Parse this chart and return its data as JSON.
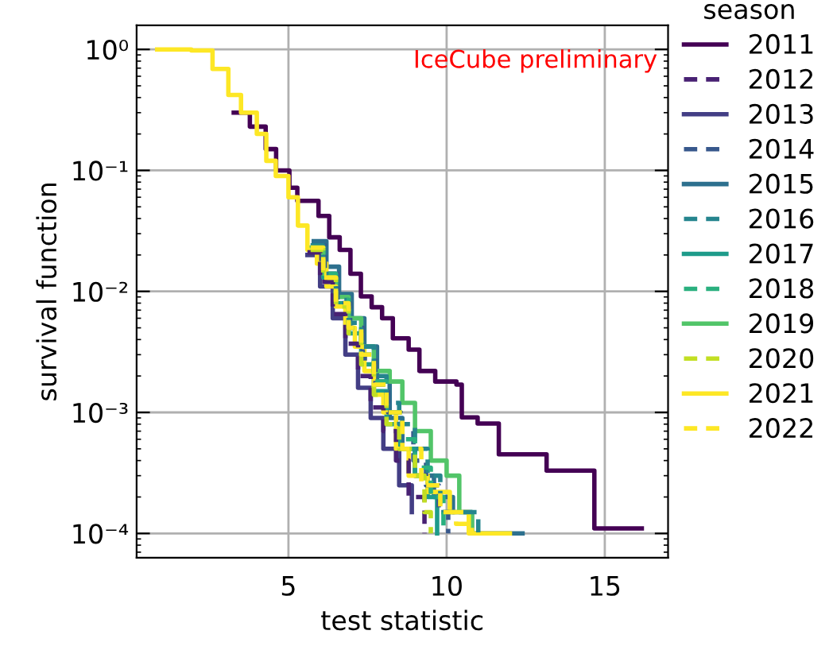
{
  "chart_data": {
    "type": "step",
    "xlabel": "test statistic",
    "ylabel": "survival function",
    "legend_title": "season",
    "annotations": [
      "IceCube preliminary"
    ],
    "log": "y",
    "grid": true,
    "legend": "right",
    "xlim": [
      0.2,
      17.0
    ],
    "xticks": [
      5,
      10,
      15
    ],
    "ylim": [
      6.3e-05,
      1.58
    ],
    "yticks": [
      {
        "value": 1,
        "label": "10⁰"
      },
      {
        "value": 0.1,
        "label": "10⁻¹"
      },
      {
        "value": 0.01,
        "label": "10⁻²"
      },
      {
        "value": 0.001,
        "label": "10⁻³"
      },
      {
        "value": 0.0001,
        "label": "10⁻⁴"
      }
    ],
    "series": [
      {
        "name": "2011",
        "color": "#440154",
        "line_style": "solid",
        "x": [
          3.27,
          3.78,
          4.28,
          4.61,
          5.03,
          5.28,
          5.95,
          6.29,
          6.62,
          6.96,
          7.29,
          7.63,
          7.96,
          8.3,
          8.8,
          9.14,
          9.64,
          10.31,
          10.48,
          10.98,
          11.65,
          13.16,
          14.67,
          16.17
        ],
        "values": [
          0.3,
          0.23,
          0.15,
          0.1,
          0.072,
          0.056,
          0.042,
          0.028,
          0.022,
          0.014,
          0.0091,
          0.0074,
          0.006,
          0.0041,
          0.0033,
          0.0022,
          0.0018,
          0.0017,
          0.00091,
          0.00081,
          0.00045,
          0.00033,
          0.00011,
          0.00011
        ]
      },
      {
        "name": "2012",
        "color": "#482173",
        "line_style": "dashed",
        "x": [
          5.6,
          6.0,
          6.4,
          6.8,
          7.2,
          7.6,
          8.0,
          8.4,
          8.8,
          9.3
        ],
        "values": [
          0.021,
          0.012,
          0.0065,
          0.0037,
          0.002,
          0.0011,
          0.0007,
          0.0004,
          0.0002,
          0.0001
        ]
      },
      {
        "name": "2013",
        "color": "#433e85",
        "line_style": "solid",
        "x": [
          5.6,
          6.0,
          6.4,
          6.8,
          7.2,
          7.6,
          8.0,
          8.5,
          8.9
        ],
        "values": [
          0.02,
          0.011,
          0.006,
          0.003,
          0.0016,
          0.0009,
          0.0005,
          0.00025,
          0.00015
        ]
      },
      {
        "name": "2014",
        "color": "#38588c",
        "line_style": "dashed",
        "x": [
          5.75,
          6.15,
          6.55,
          6.95,
          7.35,
          7.75,
          8.15,
          8.55,
          8.95,
          9.35,
          9.75,
          10.05
        ],
        "values": [
          0.024,
          0.014,
          0.008,
          0.005,
          0.0028,
          0.0017,
          0.001,
          0.0007,
          0.0004,
          0.00025,
          0.00015,
          0.0001
        ]
      },
      {
        "name": "2015",
        "color": "#2d708e",
        "line_style": "solid",
        "x": [
          5.8,
          6.2,
          6.6,
          7.0,
          7.4,
          7.8,
          8.2,
          8.6,
          9.0,
          9.6,
          10.2,
          10.8,
          12.4
        ],
        "values": [
          0.026,
          0.016,
          0.0095,
          0.006,
          0.0035,
          0.0018,
          0.0009,
          0.0005,
          0.0003,
          0.0002,
          0.00015,
          0.0001,
          0.0001
        ]
      },
      {
        "name": "2016",
        "color": "#25858e",
        "line_style": "dashed",
        "x": [
          5.7,
          6.1,
          6.5,
          6.9,
          7.3,
          7.7,
          8.1,
          8.5,
          9.0,
          9.4,
          9.8,
          11.0
        ],
        "values": [
          0.024,
          0.014,
          0.0085,
          0.0055,
          0.0035,
          0.002,
          0.0012,
          0.0008,
          0.0005,
          0.0003,
          0.00015,
          0.0001
        ]
      },
      {
        "name": "2017",
        "color": "#1e9b8a",
        "line_style": "solid",
        "x": [
          5.7,
          6.1,
          6.5,
          6.9,
          7.3,
          7.7,
          8.1,
          8.5,
          9.0,
          9.4,
          9.7
        ],
        "values": [
          0.022,
          0.013,
          0.008,
          0.0045,
          0.0025,
          0.0015,
          0.0008,
          0.0005,
          0.0003,
          0.0002,
          0.0001
        ]
      },
      {
        "name": "2018",
        "color": "#2ab07f",
        "line_style": "dashed",
        "x": [
          5.7,
          6.1,
          6.5,
          6.9,
          7.3,
          7.7,
          8.1,
          8.6,
          9.0,
          9.5,
          9.9
        ],
        "values": [
          0.023,
          0.014,
          0.0085,
          0.005,
          0.003,
          0.0018,
          0.001,
          0.0006,
          0.00035,
          0.0002,
          0.0001
        ]
      },
      {
        "name": "2019",
        "color": "#52c569",
        "line_style": "solid",
        "x": [
          5.7,
          6.1,
          6.5,
          6.9,
          7.3,
          7.7,
          8.2,
          8.6,
          9.0,
          9.5,
          10.0,
          10.4,
          10.8
        ],
        "values": [
          0.023,
          0.014,
          0.009,
          0.006,
          0.0035,
          0.0022,
          0.0018,
          0.0012,
          0.0007,
          0.0004,
          0.0003,
          0.00015,
          0.0001
        ]
      },
      {
        "name": "2020",
        "color": "#c2df23",
        "line_style": "dashed",
        "x": [
          5.7,
          6.1,
          6.5,
          6.9,
          7.3,
          7.7,
          8.1,
          8.5,
          9.0,
          9.3,
          9.5
        ],
        "values": [
          0.022,
          0.013,
          0.0075,
          0.0045,
          0.0025,
          0.0014,
          0.0008,
          0.0005,
          0.0003,
          0.00015,
          0.0001
        ]
      },
      {
        "name": "2021",
        "color": "#fde725",
        "line_style": "solid",
        "x": [
          0.85,
          1.93,
          2.6,
          3.1,
          3.5,
          4.0,
          4.3,
          4.6,
          5.0,
          5.3,
          5.6,
          5.9,
          6.2,
          6.5,
          6.8,
          7.1,
          7.4,
          7.7,
          8.0,
          8.4,
          8.8,
          9.4,
          10.1,
          10.7,
          12.0
        ],
        "values": [
          1.0,
          0.98,
          0.69,
          0.42,
          0.3,
          0.2,
          0.12,
          0.09,
          0.06,
          0.035,
          0.022,
          0.017,
          0.011,
          0.0075,
          0.005,
          0.0035,
          0.0022,
          0.0014,
          0.001,
          0.0005,
          0.0003,
          0.00022,
          0.00015,
          0.0001,
          0.0001
        ]
      },
      {
        "name": "2022",
        "color": "#fde725",
        "line_style": "dashed",
        "x": [
          5.7,
          6.1,
          6.5,
          6.9,
          7.3,
          7.7,
          8.1,
          8.6,
          9.2,
          9.8,
          10.3,
          10.8
        ],
        "values": [
          0.023,
          0.013,
          0.008,
          0.005,
          0.003,
          0.0017,
          0.001,
          0.0005,
          0.00025,
          0.00015,
          0.00012,
          0.0001
        ]
      }
    ]
  }
}
